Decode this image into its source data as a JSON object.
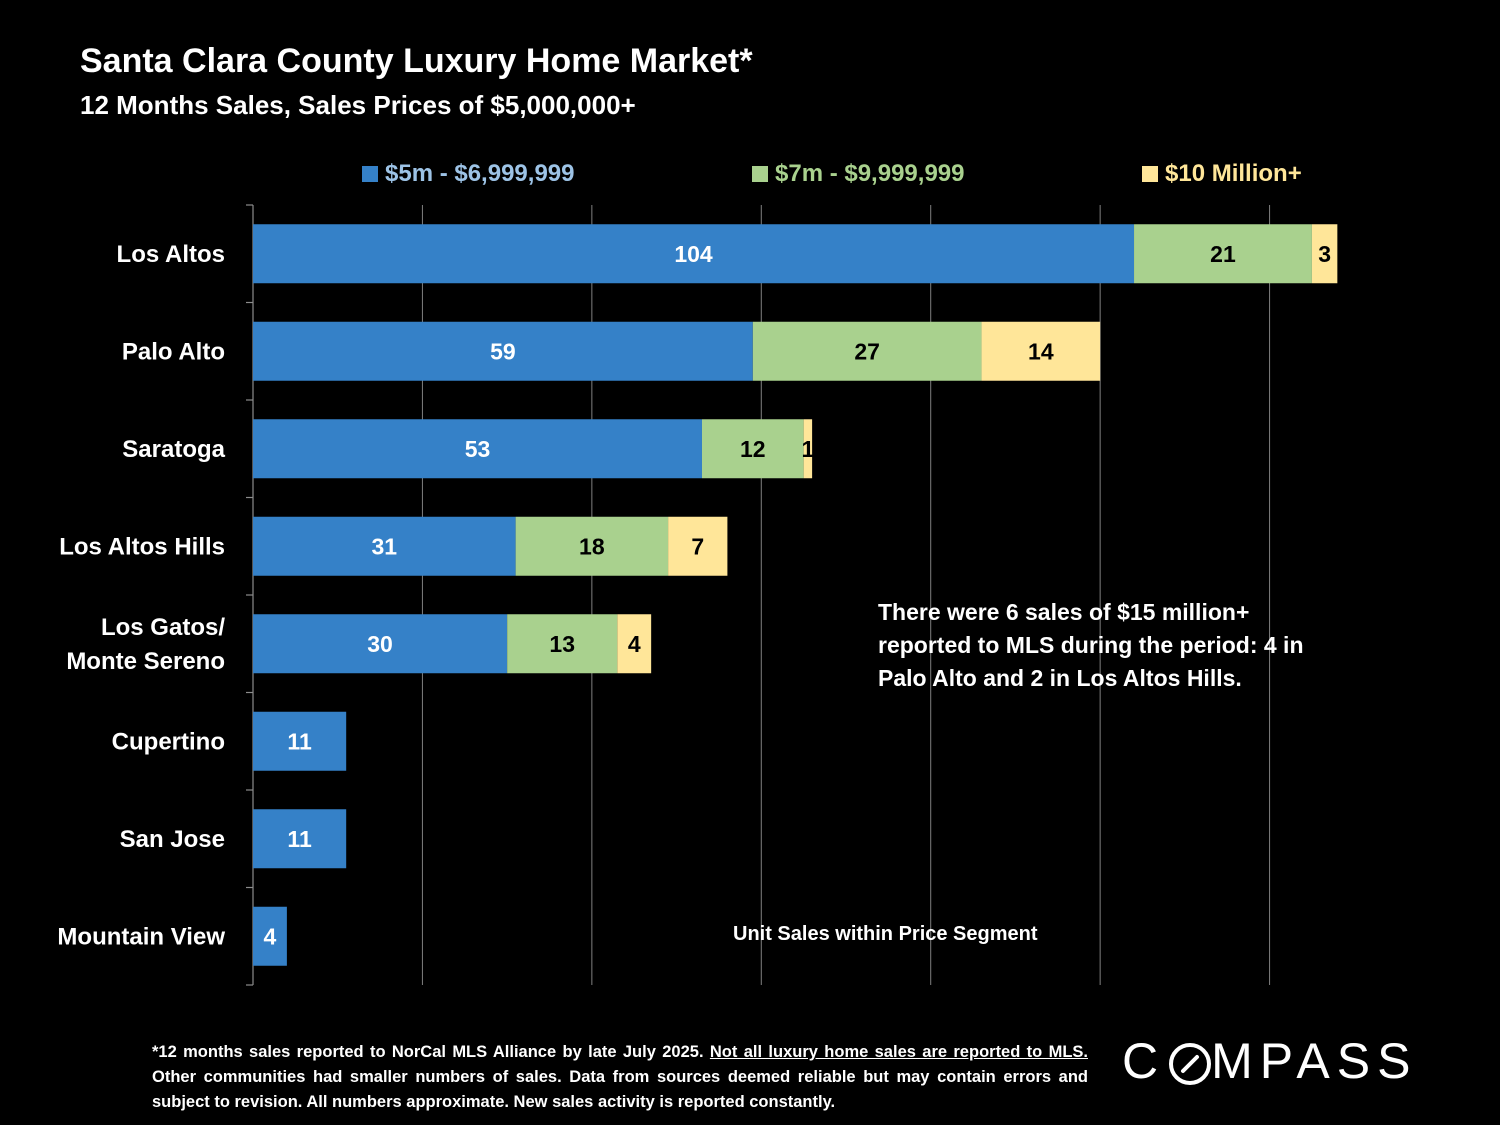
{
  "title": "Santa Clara County Luxury Home Market*",
  "subtitle": "12 Months Sales, Sales Prices of $5,000,000+",
  "chart_data": {
    "type": "bar",
    "orientation": "horizontal",
    "stacked": true,
    "categories": [
      "Los Altos",
      "Palo Alto",
      "Saratoga",
      "Los Altos Hills",
      "Los Gatos/ Monte Sereno",
      "Cupertino",
      "San Jose",
      "Mountain View"
    ],
    "category_lines": [
      [
        "Los Altos"
      ],
      [
        "Palo Alto"
      ],
      [
        "Saratoga"
      ],
      [
        "Los Altos Hills"
      ],
      [
        "Los Gatos/",
        "Monte Sereno"
      ],
      [
        "Cupertino"
      ],
      [
        "San Jose"
      ],
      [
        "Mountain View"
      ]
    ],
    "series": [
      {
        "name": "$5m - $6,999,999",
        "color": "#3581C8",
        "label_color": "#ffffff",
        "legend_text_color": "#9DC3E6",
        "values": [
          104,
          59,
          53,
          31,
          30,
          11,
          11,
          4
        ]
      },
      {
        "name": "$7m - $9,999,999",
        "color": "#A9D18E",
        "label_color": "#000000",
        "legend_text_color": "#A9D18E",
        "values": [
          21,
          27,
          12,
          18,
          13,
          0,
          0,
          0
        ]
      },
      {
        "name": "$10 Million+",
        "color": "#FFE699",
        "label_color": "#000000",
        "legend_text_color": "#FFE699",
        "values": [
          3,
          14,
          1,
          7,
          4,
          0,
          0,
          0
        ]
      }
    ],
    "xlim": [
      0,
      140
    ],
    "grid_step": 20,
    "gridlines": true,
    "legend_position": "top",
    "xlabel": "Unit Sales within Price Segment"
  },
  "annotation": "There were 6 sales of $15 million+ reported to MLS during the period:  4 in Palo Alto and 2 in Los Altos Hills.",
  "footnote": {
    "part1": "*12 months sales reported to NorCal MLS Alliance by late July 2025. ",
    "underlined": "Not all luxury home sales are reported to MLS.",
    "part2": " Other communities had smaller numbers of sales. Data from sources deemed reliable but may contain errors and subject to revision. All numbers approximate. New sales activity is reported constantly."
  },
  "logo": {
    "before": "C",
    "after": "MPASS"
  }
}
